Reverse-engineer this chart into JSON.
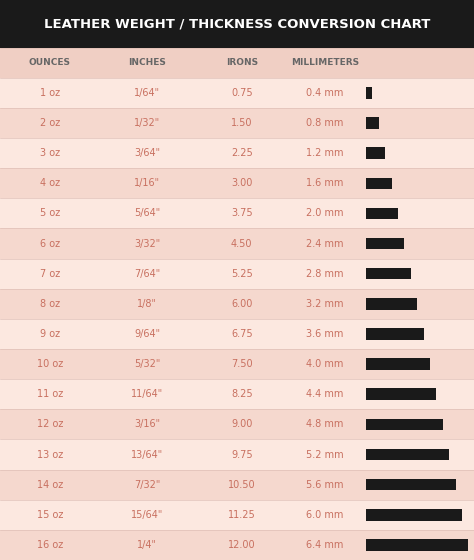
{
  "title": "LEATHER WEIGHT / THICKNESS CONVERSION CHART",
  "title_bg": "#1a1a1a",
  "title_color": "#ffffff",
  "header_bg": "#f0cfc4",
  "row_bg_odd": "#fce8e0",
  "row_bg_even": "#f5d8ce",
  "bar_color": "#1a1a1a",
  "text_color": "#c87060",
  "header_text_color": "#666666",
  "col_headers": [
    "OUNCES",
    "INCHES",
    "IRONS",
    "MILLIMETERS"
  ],
  "rows": [
    [
      "1 oz",
      "1/64\"",
      "0.75",
      "0.4 mm"
    ],
    [
      "2 oz",
      "1/32\"",
      "1.50",
      "0.8 mm"
    ],
    [
      "3 oz",
      "3/64\"",
      "2.25",
      "1.2 mm"
    ],
    [
      "4 oz",
      "1/16\"",
      "3.00",
      "1.6 mm"
    ],
    [
      "5 oz",
      "5/64\"",
      "3.75",
      "2.0 mm"
    ],
    [
      "6 oz",
      "3/32\"",
      "4.50",
      "2.4 mm"
    ],
    [
      "7 oz",
      "7/64\"",
      "5.25",
      "2.8 mm"
    ],
    [
      "8 oz",
      "1/8\"",
      "6.00",
      "3.2 mm"
    ],
    [
      "9 oz",
      "9/64\"",
      "6.75",
      "3.6 mm"
    ],
    [
      "10 oz",
      "5/32\"",
      "7.50",
      "4.0 mm"
    ],
    [
      "11 oz",
      "11/64\"",
      "8.25",
      "4.4 mm"
    ],
    [
      "12 oz",
      "3/16\"",
      "9.00",
      "4.8 mm"
    ],
    [
      "13 oz",
      "13/64\"",
      "9.75",
      "5.2 mm"
    ],
    [
      "14 oz",
      "7/32\"",
      "10.50",
      "5.6 mm"
    ],
    [
      "15 oz",
      "15/64\"",
      "11.25",
      "6.0 mm"
    ],
    [
      "16 oz",
      "1/4\"",
      "12.00",
      "6.4 mm"
    ]
  ],
  "mm_values": [
    0.4,
    0.8,
    1.2,
    1.6,
    2.0,
    2.4,
    2.8,
    3.2,
    3.6,
    4.0,
    4.4,
    4.8,
    5.2,
    5.6,
    6.0,
    6.4
  ],
  "max_mm": 6.4,
  "figsize": [
    4.74,
    5.6
  ],
  "dpi": 100
}
